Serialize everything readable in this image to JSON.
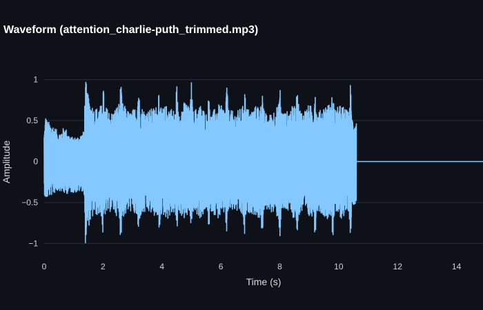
{
  "chart_data": {
    "type": "line",
    "title": "Waveform (attention_charlie-puth_trimmed.mp3)",
    "xlabel": "Time (s)",
    "ylabel": "Amplitude",
    "xlim": [
      0,
      14.9
    ],
    "ylim": [
      -1.03,
      1.03
    ],
    "x_ticks": [
      0,
      2,
      4,
      6,
      8,
      10,
      12,
      14
    ],
    "y_ticks": [
      1,
      0.5,
      0,
      -0.5,
      -1
    ],
    "y_tick_labels": [
      "1",
      "0.5",
      "0",
      "−0.5",
      "−1"
    ],
    "grid": true,
    "line_color": "#83c9ff",
    "background_color": "#0e1117",
    "grid_color": "#2b3038",
    "signal_end_s": 10.6,
    "series": [
      {
        "values_description_free": true,
        "envelope_x": [
          0,
          0.05,
          0.1,
          0.3,
          0.5,
          0.7,
          0.9,
          1.1,
          1.3,
          1.38,
          1.4,
          1.5,
          1.7,
          2.0,
          2.3,
          2.6,
          2.9,
          3.2,
          3.5,
          3.8,
          4.0,
          4.2,
          4.5,
          4.8,
          5.0,
          5.3,
          5.6,
          5.9,
          6.2,
          6.5,
          6.8,
          7.0,
          7.3,
          7.6,
          7.9,
          8.2,
          8.5,
          8.8,
          9.0,
          9.3,
          9.6,
          9.9,
          10.1,
          10.3,
          10.45,
          10.6
        ],
        "envelope_top": [
          0.35,
          0.58,
          0.5,
          0.45,
          0.35,
          0.43,
          0.3,
          0.3,
          0.35,
          0.4,
          1.0,
          0.8,
          0.65,
          0.7,
          0.6,
          0.75,
          0.6,
          0.7,
          0.62,
          0.68,
          0.65,
          0.7,
          0.6,
          0.75,
          0.6,
          0.7,
          0.55,
          0.7,
          0.65,
          0.6,
          0.7,
          0.62,
          0.72,
          0.55,
          0.68,
          0.6,
          0.7,
          0.62,
          0.7,
          0.6,
          0.72,
          0.65,
          0.7,
          0.62,
          0.55,
          0.5
        ],
        "envelope_bottom": [
          -0.38,
          -0.48,
          -0.45,
          -0.4,
          -0.35,
          -0.4,
          -0.38,
          -0.38,
          -0.36,
          -0.4,
          -1.0,
          -0.8,
          -0.65,
          -0.68,
          -0.6,
          -0.72,
          -0.6,
          -0.7,
          -0.62,
          -0.68,
          -0.65,
          -0.7,
          -0.6,
          -0.72,
          -0.6,
          -0.7,
          -0.58,
          -0.7,
          -0.62,
          -0.6,
          -0.7,
          -0.62,
          -0.7,
          -0.58,
          -0.68,
          -0.6,
          -0.7,
          -0.62,
          -0.7,
          -0.6,
          -0.7,
          -0.65,
          -0.7,
          -0.62,
          -0.55,
          -0.5
        ],
        "peak_times": [
          1.4,
          2.0,
          2.6,
          3.2,
          3.9,
          4.5,
          5.0,
          5.6,
          6.2,
          6.8,
          7.4,
          8.0,
          8.6,
          9.2,
          9.8,
          10.4
        ]
      }
    ]
  }
}
